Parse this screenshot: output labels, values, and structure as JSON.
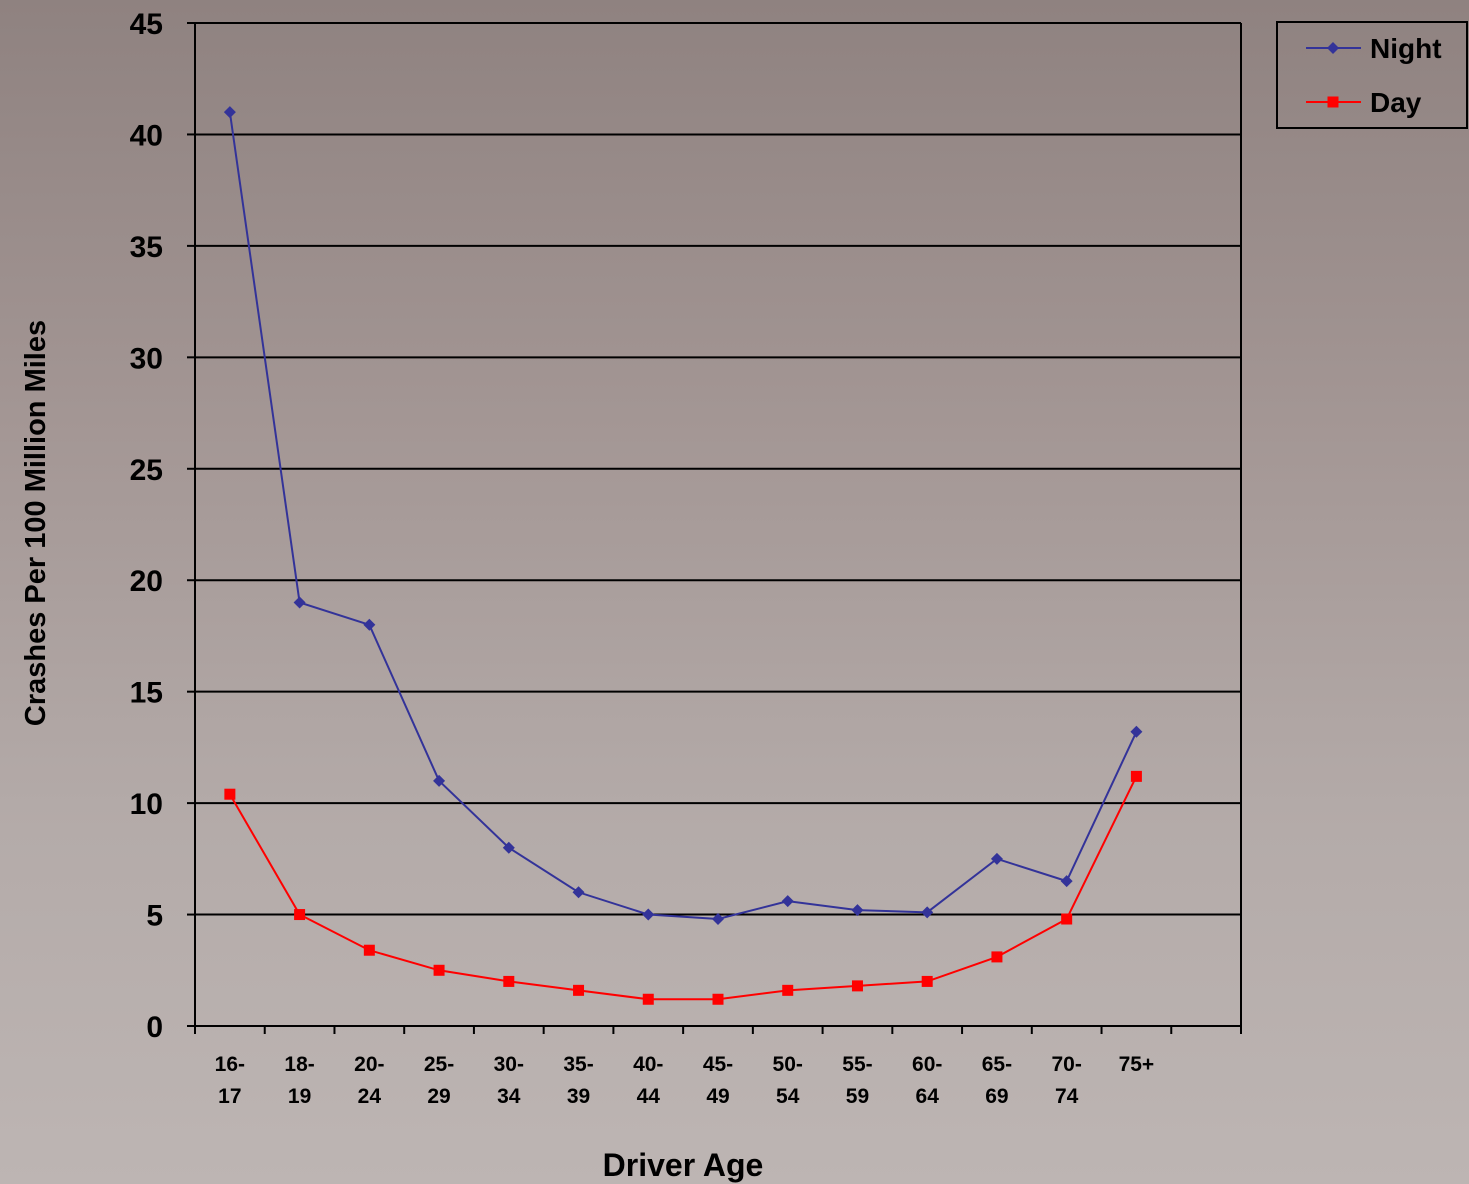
{
  "chart_data": {
    "type": "line",
    "title": "",
    "xlabel": "Driver Age",
    "ylabel": "Crashes Per 100 Million Miles",
    "ylim": [
      0,
      45
    ],
    "yticks": [
      0,
      5,
      10,
      15,
      20,
      25,
      30,
      35,
      40,
      45
    ],
    "grid": true,
    "legend_position": "top-right",
    "categories": [
      [
        "16-",
        "17"
      ],
      [
        "18-",
        "19"
      ],
      [
        "20-",
        "24"
      ],
      [
        "25-",
        "29"
      ],
      [
        "30-",
        "34"
      ],
      [
        "35-",
        "39"
      ],
      [
        "40-",
        "44"
      ],
      [
        "45-",
        "49"
      ],
      [
        "50-",
        "54"
      ],
      [
        "55-",
        "59"
      ],
      [
        "60-",
        "64"
      ],
      [
        "65-",
        "69"
      ],
      [
        "70-",
        "74"
      ],
      [
        "75+",
        ""
      ]
    ],
    "series": [
      {
        "name": "Night",
        "color": "#333399",
        "marker": "diamond",
        "values": [
          41,
          19,
          18,
          11,
          8,
          6,
          5,
          4.8,
          5.6,
          5.2,
          5.1,
          7.5,
          6.5,
          13.2
        ]
      },
      {
        "name": "Day",
        "color": "#ff0000",
        "marker": "square",
        "values": [
          10.4,
          5,
          3.4,
          2.5,
          2,
          1.6,
          1.2,
          1.2,
          1.6,
          1.8,
          2,
          3.1,
          4.8,
          11.2
        ]
      }
    ]
  }
}
